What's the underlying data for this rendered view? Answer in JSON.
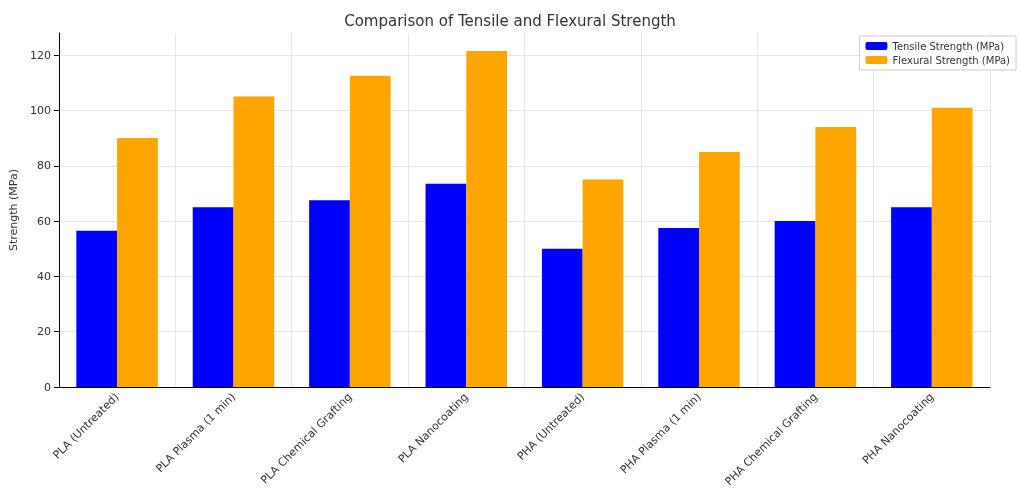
{
  "chart_data": {
    "type": "bar",
    "title": "Comparison of Tensile and Flexural Strength",
    "ylabel": "Strength (MPa)",
    "categories": [
      "PLA (Untreated)",
      "PLA Plasma (1 min)",
      "PLA Chemical Grafting",
      "PLA Nanocoating",
      "PHA (Untreated)",
      "PHA Plasma (1 min)",
      "PHA Chemical Grafting",
      "PHA Nanocoating"
    ],
    "series": [
      {
        "name": "Tensile Strength (MPa)",
        "color": "#0000ff",
        "values": [
          56.5,
          65,
          67.5,
          73.5,
          50,
          57.5,
          60,
          65
        ]
      },
      {
        "name": "Flexural Strength (MPa)",
        "color": "#ffa500",
        "values": [
          90,
          105,
          112.5,
          121.5,
          75,
          85,
          94,
          101
        ]
      }
    ],
    "ylim": [
      0,
      128
    ],
    "yticks": [
      0,
      20,
      40,
      60,
      80,
      100,
      120
    ],
    "grid": true,
    "legend": "top right"
  }
}
